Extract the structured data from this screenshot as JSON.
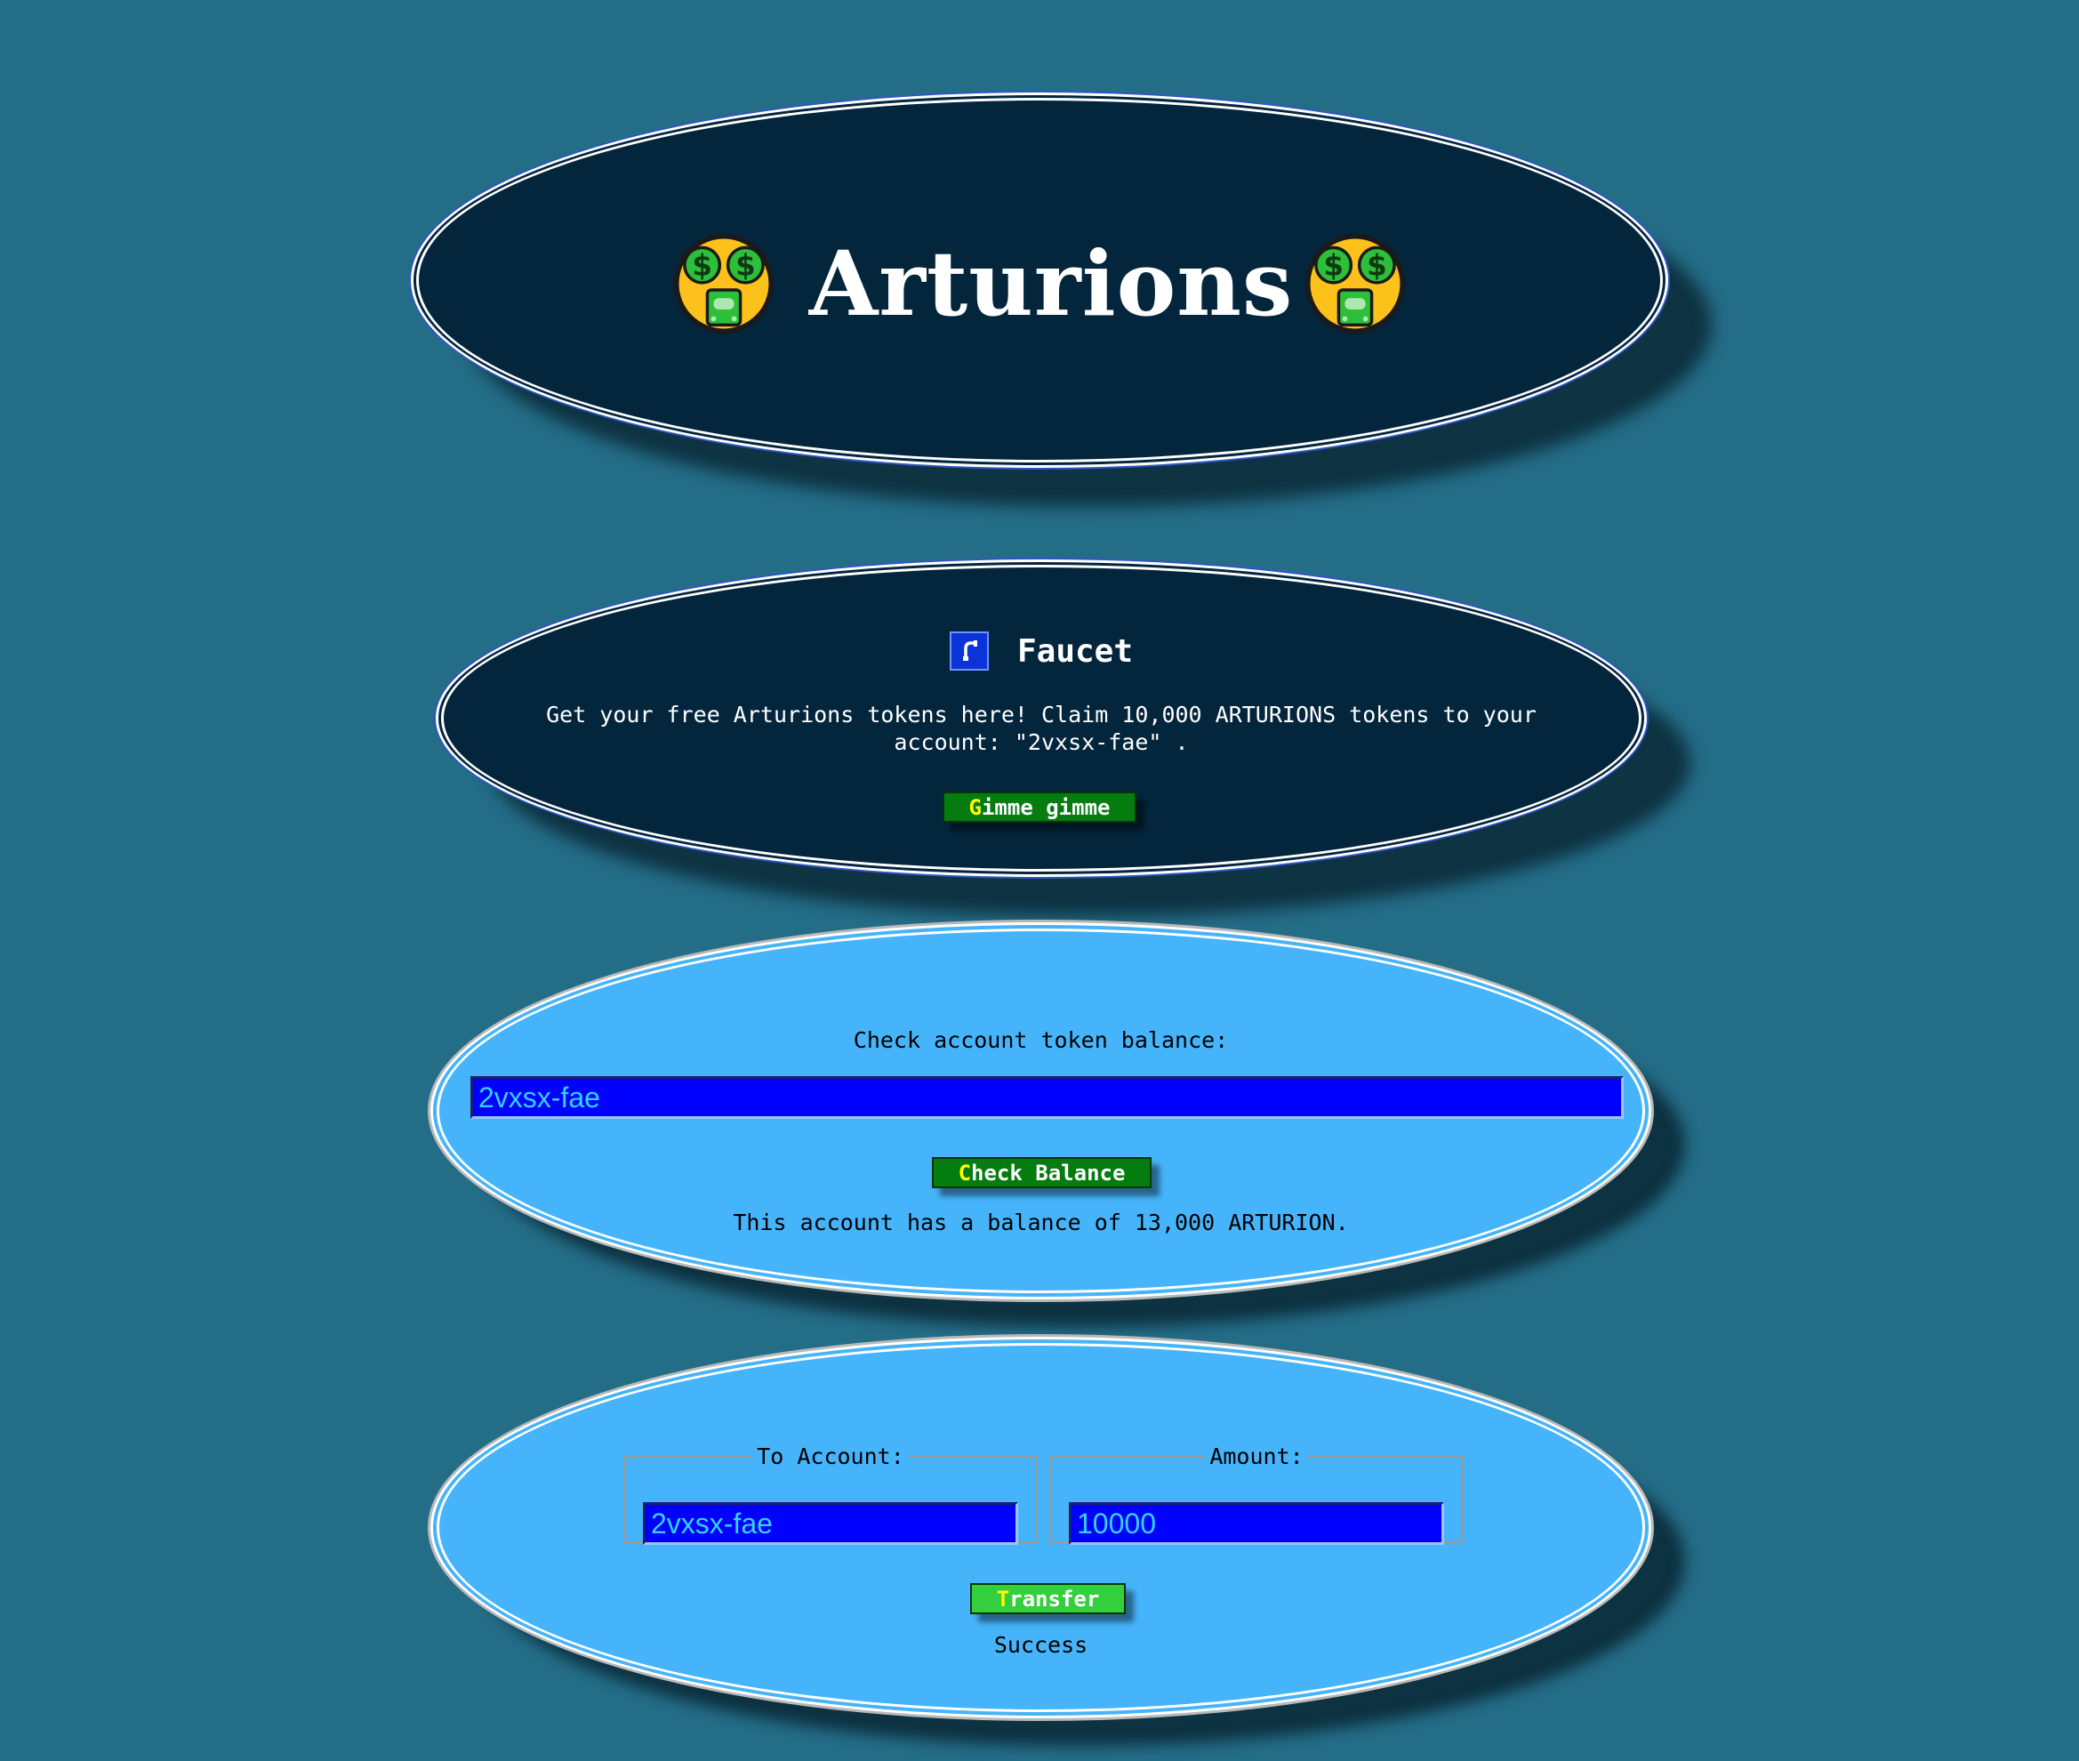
{
  "header": {
    "title": "Arturions",
    "left_icon": "money-mouth-face",
    "right_icon": "money-mouth-face"
  },
  "faucet": {
    "icon": "faucet-icon",
    "title": "Faucet",
    "description": "Get your free Arturions tokens here! Claim 10,000 ARTURIONS tokens to your account: \"2vxsx-fae\" .",
    "button_first": "G",
    "button_rest": "imme gimme"
  },
  "balance": {
    "label": "Check account token balance:",
    "input_value": "2vxsx-fae",
    "button_first": "C",
    "button_rest": "heck Balance",
    "result": "This account has a balance of 13,000 ARTURION."
  },
  "transfer": {
    "to_label": "To Account:",
    "to_value": "2vxsx-fae",
    "amount_label": "Amount:",
    "amount_value": "10000",
    "button_first": "T",
    "button_rest": "ransfer",
    "status": "Success"
  },
  "colors": {
    "background": "#246d87",
    "dark_panel": "#04263d",
    "light_panel": "#46b4fb",
    "input_bg": "#0000ff",
    "input_text": "#34d2ff",
    "button_dark_green": "#047c10",
    "button_light_green": "#33cf3c",
    "button_accent_letter": "#ffff00"
  }
}
